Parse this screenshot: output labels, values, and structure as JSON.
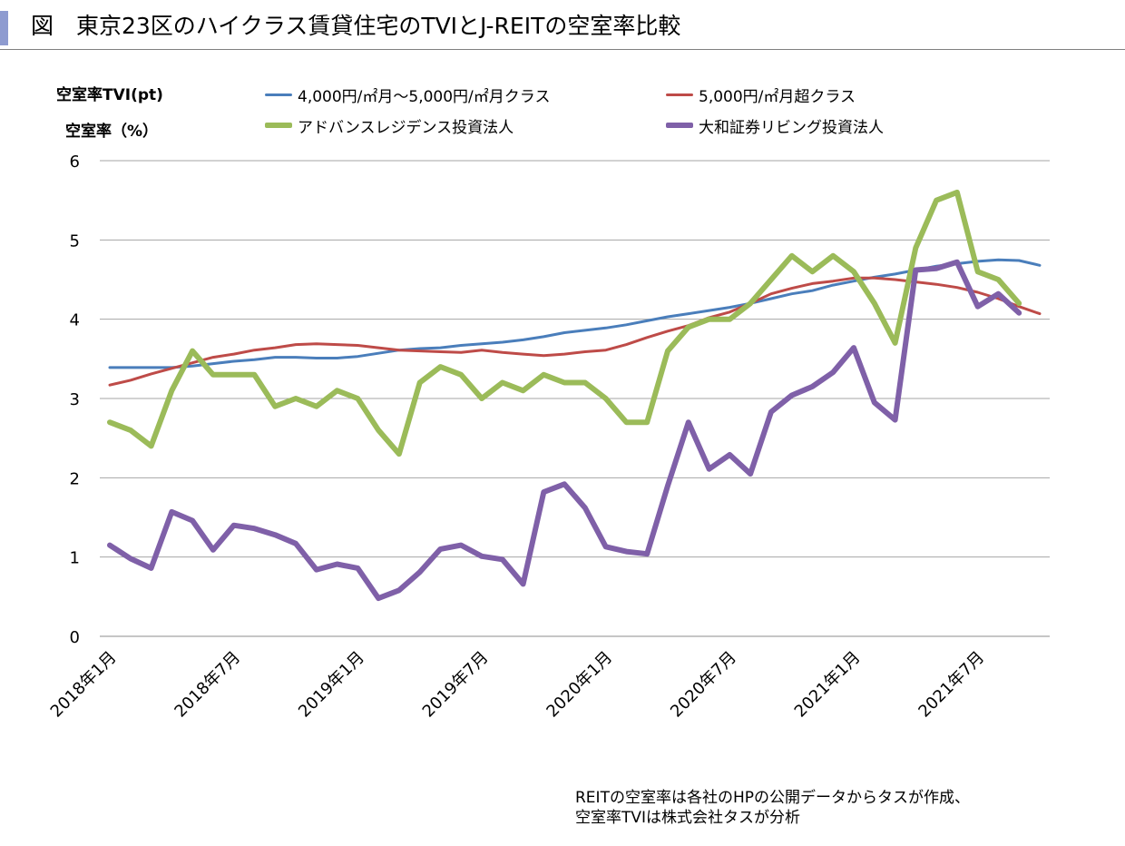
{
  "header": {
    "title": "図　東京23区のハイクラス賃貸住宅のTVIとJ-REITの空室率比較",
    "accent_color": "#8e9bd0"
  },
  "chart_data": {
    "type": "line",
    "title": "図　東京23区のハイクラス賃貸住宅のTVIとJ-REITの空室率比較",
    "ylabel_lines": [
      "空室率TVI(pt)",
      "空室率（%）"
    ],
    "xlabel": "",
    "ylim": [
      0,
      6
    ],
    "yticks": [
      0,
      1,
      2,
      3,
      4,
      5,
      6
    ],
    "grid": true,
    "legend_position": "top",
    "x_tick_labels": [
      "2018年1月",
      "2018年7月",
      "2019年1月",
      "2019年7月",
      "2020年1月",
      "2020年7月",
      "2021年1月",
      "2021年7月"
    ],
    "x_tick_months": [
      0,
      6,
      12,
      18,
      24,
      30,
      36,
      42
    ],
    "months": 46,
    "series": [
      {
        "name": "4,000円/㎡月～5,000円/㎡月クラス",
        "color": "#4a7ebb",
        "width": 3,
        "values": [
          3.39,
          3.39,
          3.39,
          3.39,
          3.41,
          3.44,
          3.47,
          3.49,
          3.52,
          3.52,
          3.51,
          3.51,
          3.53,
          3.57,
          3.61,
          3.63,
          3.64,
          3.67,
          3.69,
          3.71,
          3.74,
          3.78,
          3.83,
          3.86,
          3.89,
          3.93,
          3.98,
          4.03,
          4.07,
          4.11,
          4.15,
          4.2,
          4.26,
          4.32,
          4.36,
          4.43,
          4.48,
          4.53,
          4.57,
          4.62,
          4.67,
          4.7,
          4.73,
          4.75,
          4.74,
          4.68
        ]
      },
      {
        "name": "5,000円/㎡月超クラス",
        "color": "#be4b48",
        "width": 3,
        "values": [
          3.17,
          3.23,
          3.31,
          3.38,
          3.45,
          3.52,
          3.56,
          3.61,
          3.64,
          3.68,
          3.69,
          3.68,
          3.67,
          3.64,
          3.61,
          3.6,
          3.59,
          3.58,
          3.61,
          3.58,
          3.56,
          3.54,
          3.56,
          3.59,
          3.61,
          3.68,
          3.77,
          3.85,
          3.92,
          4.02,
          4.09,
          4.2,
          4.32,
          4.39,
          4.45,
          4.48,
          4.52,
          4.52,
          4.5,
          4.47,
          4.44,
          4.4,
          4.34,
          4.26,
          4.16,
          4.07
        ]
      },
      {
        "name": "アドバンスレジデンス投資法人",
        "color": "#9bbb59",
        "width": 6,
        "values": [
          2.7,
          2.6,
          2.4,
          3.1,
          3.6,
          3.3,
          3.3,
          3.3,
          2.9,
          3.0,
          2.9,
          3.1,
          3.0,
          2.6,
          2.3,
          3.2,
          3.4,
          3.3,
          3.0,
          3.2,
          3.1,
          3.3,
          3.2,
          3.2,
          3.0,
          2.7,
          2.7,
          3.6,
          3.9,
          4.0,
          4.0,
          4.2,
          4.5,
          4.8,
          4.6,
          4.8,
          4.6,
          4.2,
          3.7,
          4.9,
          5.5,
          5.6,
          4.6,
          4.5,
          4.2,
          null
        ]
      },
      {
        "name": "大和証券リビング投資法人",
        "color": "#7f60a8",
        "width": 6,
        "values": [
          1.15,
          0.98,
          0.86,
          1.57,
          1.46,
          1.09,
          1.4,
          1.36,
          1.28,
          1.17,
          0.84,
          0.91,
          0.86,
          0.48,
          0.58,
          0.81,
          1.1,
          1.15,
          1.01,
          0.97,
          0.66,
          1.82,
          1.92,
          1.62,
          1.13,
          1.07,
          1.04,
          1.9,
          2.7,
          2.11,
          2.29,
          2.05,
          2.83,
          3.04,
          3.15,
          3.33,
          3.64,
          2.95,
          2.73,
          4.62,
          4.64,
          4.72,
          4.16,
          4.32,
          4.08,
          null
        ]
      }
    ]
  },
  "source_note": {
    "line1": "REITの空室率は各社のHPの公開データからタスが作成、",
    "line2": "空室率TVIは株式会社タスが分析"
  }
}
